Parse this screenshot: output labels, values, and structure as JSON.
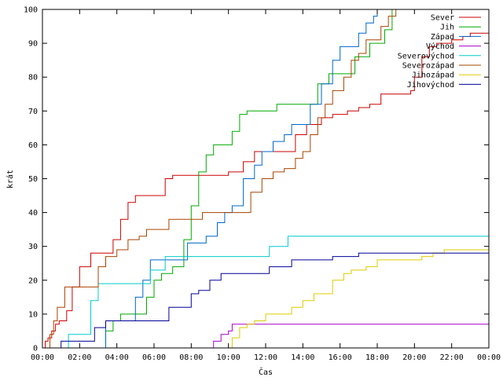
{
  "chart_data": {
    "type": "line",
    "title": "",
    "xlabel": "Čas",
    "ylabel": "krát",
    "xlim": [
      0,
      24
    ],
    "ylim": [
      0,
      100
    ],
    "x_ticks": [
      "00:00",
      "02:00",
      "04:00",
      "06:00",
      "08:00",
      "10:00",
      "12:00",
      "14:00",
      "16:00",
      "18:00",
      "20:00",
      "22:00",
      "00:00"
    ],
    "y_ticks": [
      "0",
      "10",
      "20",
      "30",
      "40",
      "50",
      "60",
      "70",
      "80",
      "90",
      "100"
    ],
    "grid": false,
    "legend_position": "top-right",
    "series": [
      {
        "name": "Sever",
        "color": "#cc0000",
        "points": [
          [
            0,
            0
          ],
          [
            0.15,
            2
          ],
          [
            0.3,
            3
          ],
          [
            0.5,
            5
          ],
          [
            0.7,
            7
          ],
          [
            0.9,
            8
          ],
          [
            1.3,
            11
          ],
          [
            1.6,
            18
          ],
          [
            2.0,
            24
          ],
          [
            2.6,
            28
          ],
          [
            3.6,
            28
          ],
          [
            3.8,
            32
          ],
          [
            4.2,
            38
          ],
          [
            4.6,
            43
          ],
          [
            5.0,
            45
          ],
          [
            6.2,
            45
          ],
          [
            6.6,
            50
          ],
          [
            7.0,
            51
          ],
          [
            8.0,
            51
          ],
          [
            9.0,
            51
          ],
          [
            10.0,
            52
          ],
          [
            10.8,
            55
          ],
          [
            11.4,
            58
          ],
          [
            13.2,
            58
          ],
          [
            13.6,
            63
          ],
          [
            14.2,
            66
          ],
          [
            15.0,
            68
          ],
          [
            15.6,
            69
          ],
          [
            16.4,
            70
          ],
          [
            17.0,
            71
          ],
          [
            17.6,
            72
          ],
          [
            18.2,
            75
          ],
          [
            19.8,
            76
          ],
          [
            20.0,
            80
          ],
          [
            20.4,
            86
          ],
          [
            20.8,
            89
          ],
          [
            21.2,
            90
          ],
          [
            22.0,
            91
          ],
          [
            22.6,
            92
          ],
          [
            23.0,
            93
          ],
          [
            24,
            93
          ]
        ]
      },
      {
        "name": "Jih",
        "color": "#00aa00",
        "points": [
          [
            0,
            0
          ],
          [
            3.2,
            0
          ],
          [
            3.4,
            5
          ],
          [
            3.8,
            8
          ],
          [
            4.2,
            10
          ],
          [
            5.2,
            10
          ],
          [
            5.6,
            15
          ],
          [
            6.0,
            20
          ],
          [
            6.4,
            22
          ],
          [
            7.0,
            24
          ],
          [
            7.6,
            32
          ],
          [
            8.0,
            42
          ],
          [
            8.4,
            52
          ],
          [
            8.8,
            57
          ],
          [
            9.2,
            60
          ],
          [
            9.8,
            60
          ],
          [
            10.2,
            64
          ],
          [
            10.6,
            69
          ],
          [
            11.0,
            70
          ],
          [
            12.6,
            72
          ],
          [
            14.6,
            72
          ],
          [
            14.8,
            78
          ],
          [
            15.4,
            81
          ],
          [
            16.6,
            81
          ],
          [
            16.8,
            86
          ],
          [
            17.4,
            86
          ],
          [
            17.6,
            90
          ],
          [
            18.4,
            94
          ],
          [
            18.8,
            100
          ],
          [
            24,
            100
          ]
        ]
      },
      {
        "name": "Západ",
        "color": "#0066cc",
        "points": [
          [
            0,
            0
          ],
          [
            3.0,
            0
          ],
          [
            3.4,
            8
          ],
          [
            4.4,
            8
          ],
          [
            5.0,
            15
          ],
          [
            5.4,
            20
          ],
          [
            5.8,
            26
          ],
          [
            7.2,
            26
          ],
          [
            7.8,
            31
          ],
          [
            8.8,
            33
          ],
          [
            9.4,
            37
          ],
          [
            9.8,
            40
          ],
          [
            10.2,
            42
          ],
          [
            10.8,
            50
          ],
          [
            11.4,
            54
          ],
          [
            11.8,
            58
          ],
          [
            12.4,
            61
          ],
          [
            13.0,
            63
          ],
          [
            13.4,
            66
          ],
          [
            14.0,
            66
          ],
          [
            14.4,
            72
          ],
          [
            15.0,
            78
          ],
          [
            15.6,
            85
          ],
          [
            16.0,
            89
          ],
          [
            16.6,
            89
          ],
          [
            17.0,
            93
          ],
          [
            17.4,
            96
          ],
          [
            17.8,
            98
          ],
          [
            18.0,
            100
          ],
          [
            24,
            100
          ]
        ]
      },
      {
        "name": "Východ",
        "color": "#aa00cc",
        "points": [
          [
            0,
            0
          ],
          [
            9.0,
            0
          ],
          [
            9.2,
            2
          ],
          [
            9.6,
            4
          ],
          [
            10.0,
            5
          ],
          [
            10.2,
            7
          ],
          [
            24,
            7
          ]
        ]
      },
      {
        "name": "Severovýchod",
        "color": "#00cccc",
        "points": [
          [
            0,
            0
          ],
          [
            1.2,
            0
          ],
          [
            1.4,
            4
          ],
          [
            2.2,
            4
          ],
          [
            2.6,
            14
          ],
          [
            3.0,
            19
          ],
          [
            4.2,
            19
          ],
          [
            5.4,
            19
          ],
          [
            5.8,
            23
          ],
          [
            6.2,
            23
          ],
          [
            6.6,
            27
          ],
          [
            10.2,
            27
          ],
          [
            12.0,
            27
          ],
          [
            12.2,
            30
          ],
          [
            12.8,
            30
          ],
          [
            13.2,
            33
          ],
          [
            24,
            33
          ]
        ]
      },
      {
        "name": "Severozápad",
        "color": "#aa4400",
        "points": [
          [
            0,
            0
          ],
          [
            0.4,
            4
          ],
          [
            0.6,
            8
          ],
          [
            0.8,
            12
          ],
          [
            1.2,
            18
          ],
          [
            2.6,
            18
          ],
          [
            3.0,
            24
          ],
          [
            3.4,
            27
          ],
          [
            4.0,
            29
          ],
          [
            4.6,
            32
          ],
          [
            5.2,
            33
          ],
          [
            5.6,
            35
          ],
          [
            6.2,
            35
          ],
          [
            6.8,
            38
          ],
          [
            8.0,
            38
          ],
          [
            8.6,
            40
          ],
          [
            10.2,
            40
          ],
          [
            11.2,
            46
          ],
          [
            11.8,
            50
          ],
          [
            12.4,
            52
          ],
          [
            13.0,
            53
          ],
          [
            13.6,
            56
          ],
          [
            14.0,
            58
          ],
          [
            14.4,
            63
          ],
          [
            14.8,
            68
          ],
          [
            15.2,
            72
          ],
          [
            15.6,
            76
          ],
          [
            16.2,
            80
          ],
          [
            16.6,
            85
          ],
          [
            17.0,
            87
          ],
          [
            17.4,
            91
          ],
          [
            17.8,
            91
          ],
          [
            18.2,
            95
          ],
          [
            18.6,
            98
          ],
          [
            19.0,
            100
          ],
          [
            24,
            100
          ]
        ]
      },
      {
        "name": "Jihozápad",
        "color": "#ddcc00",
        "points": [
          [
            0,
            0
          ],
          [
            10.0,
            0
          ],
          [
            10.2,
            3
          ],
          [
            10.6,
            6
          ],
          [
            11.0,
            7
          ],
          [
            11.4,
            8
          ],
          [
            12.0,
            10
          ],
          [
            12.8,
            10
          ],
          [
            13.4,
            12
          ],
          [
            14.0,
            14
          ],
          [
            14.6,
            16
          ],
          [
            15.2,
            16
          ],
          [
            15.6,
            20
          ],
          [
            16.2,
            22
          ],
          [
            16.6,
            23
          ],
          [
            17.4,
            24
          ],
          [
            18.0,
            26
          ],
          [
            19.8,
            26
          ],
          [
            20.4,
            27
          ],
          [
            21.0,
            28
          ],
          [
            21.6,
            29
          ],
          [
            24,
            29
          ]
        ]
      },
      {
        "name": "Jihovýchod",
        "color": "#000099",
        "points": [
          [
            0,
            0
          ],
          [
            1.0,
            2
          ],
          [
            2.4,
            2
          ],
          [
            2.8,
            6
          ],
          [
            3.4,
            8
          ],
          [
            4.0,
            8
          ],
          [
            4.6,
            8
          ],
          [
            5.2,
            8
          ],
          [
            6.2,
            8
          ],
          [
            6.8,
            12
          ],
          [
            7.6,
            12
          ],
          [
            8.0,
            16
          ],
          [
            8.4,
            17
          ],
          [
            9.0,
            20
          ],
          [
            9.6,
            22
          ],
          [
            11.8,
            22
          ],
          [
            12.2,
            24
          ],
          [
            13.0,
            24
          ],
          [
            13.4,
            26
          ],
          [
            15.2,
            26
          ],
          [
            15.6,
            27
          ],
          [
            16.4,
            27
          ],
          [
            17.0,
            28
          ],
          [
            24,
            28
          ]
        ]
      }
    ]
  }
}
